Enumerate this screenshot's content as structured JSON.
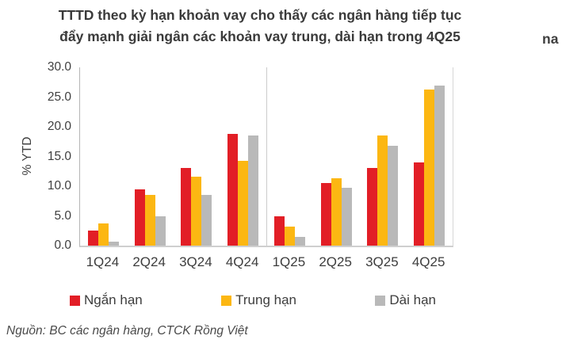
{
  "title": {
    "line1": "TTTD theo kỳ hạn khoản vay cho thấy các ngân hàng tiếp tục",
    "line2": "đẩy mạnh giải ngân các khoản vay trung, dài hạn trong 4Q25"
  },
  "adjacent_fragment": "na",
  "chart_data": {
    "type": "bar",
    "title": "TTTD theo kỳ hạn khoản vay cho thấy các ngân hàng tiếp tục đẩy mạnh giải ngân các khoản vay trung, dài hạn trong 4Q25",
    "categories": [
      "1Q24",
      "2Q24",
      "3Q24",
      "4Q24",
      "1Q25",
      "2Q25",
      "3Q25",
      "4Q25"
    ],
    "series": [
      {
        "name": "Ngắn hạn",
        "color": "#e21e26",
        "values": [
          2.5,
          9.5,
          13.1,
          18.8,
          5.0,
          10.6,
          13.1,
          14.0
        ]
      },
      {
        "name": "Trung hạn",
        "color": "#fcb712",
        "values": [
          3.8,
          8.6,
          11.6,
          14.3,
          3.2,
          11.3,
          18.5,
          26.3
        ]
      },
      {
        "name": "Dài hạn",
        "color": "#b9b9b9",
        "values": [
          0.7,
          5.0,
          8.5,
          18.5,
          1.5,
          9.8,
          16.8,
          27.0
        ]
      }
    ],
    "xlabel": "",
    "ylabel": "% YTD",
    "ylim": [
      0,
      30
    ],
    "yticks": [
      "30.0",
      "25.0",
      "20.0",
      "15.0",
      "10.0",
      "5.0",
      "0.0"
    ],
    "grid": false,
    "legend_position": "bottom",
    "separator_between": [
      "4Q24",
      "1Q25"
    ]
  },
  "source": "Nguồn: BC các ngân hàng, CTCK Rồng Việt"
}
